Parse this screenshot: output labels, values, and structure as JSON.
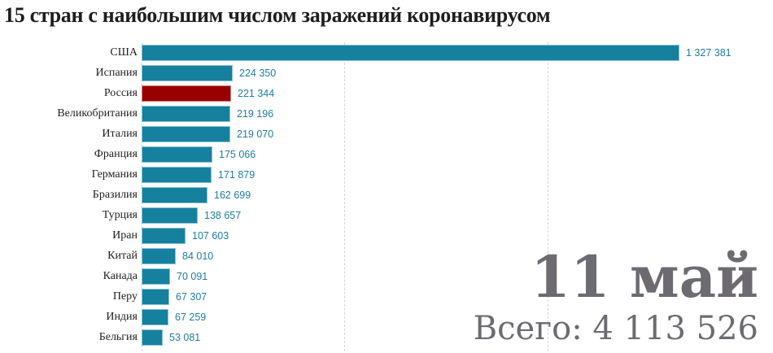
{
  "title": "15 стран с наибольшим числом заражений коронавирусом",
  "date_label": "11 май",
  "total_label": "Всего: 4 113 526",
  "colors": {
    "bar_default": "#16809f",
    "bar_highlight": "#990000",
    "value_text": "#1f7ca0",
    "overlay_text": "#6d6b70"
  },
  "chart_data": {
    "type": "bar",
    "orientation": "horizontal",
    "title": "15 стран с наибольшим числом заражений коронавирусом",
    "xlabel": "",
    "ylabel": "",
    "categories": [
      "США",
      "Испания",
      "Россия",
      "Великобритания",
      "Италия",
      "Франция",
      "Германия",
      "Бразилия",
      "Турция",
      "Иран",
      "Китай",
      "Канада",
      "Перу",
      "Индия",
      "Бельгия"
    ],
    "values": [
      1327381,
      224350,
      221344,
      219196,
      219070,
      175066,
      171879,
      162699,
      138657,
      107603,
      84010,
      70091,
      67307,
      67259,
      53081
    ],
    "value_labels": [
      "1 327 381",
      "224 350",
      "221 344",
      "219 196",
      "219 070",
      "175 066",
      "171 879",
      "162 699",
      "138 657",
      "107 603",
      "84 010",
      "70 091",
      "67 307",
      "67 259",
      "53 081"
    ],
    "highlighted": [
      "Россия"
    ],
    "xlim": [
      0,
      1327381
    ],
    "gridlines_x": [
      0,
      500000,
      1000000
    ],
    "grid": true,
    "legend": null,
    "annotations": [
      "11 май",
      "Всего: 4 113 526"
    ]
  }
}
